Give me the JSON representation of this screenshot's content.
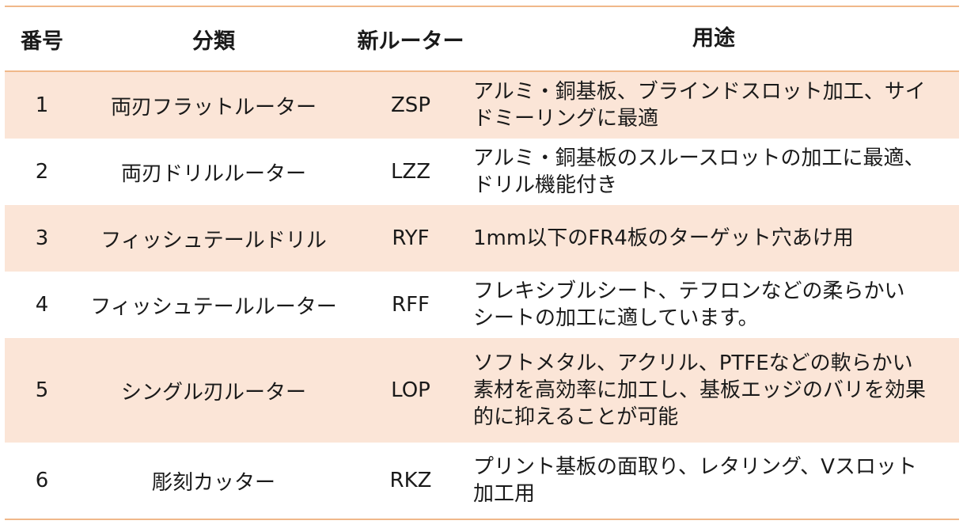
{
  "header": {
    "number": "番号",
    "category": "分類",
    "new_router": "新ルーター",
    "usage": "用途"
  },
  "rows": [
    {
      "number": "1",
      "category": "両刃フラットルーター",
      "code": "ZSP",
      "usage_lines": [
        "アルミ・銅基板、ブラインドスロット加工、サイ",
        "ドミーリングに最適"
      ]
    },
    {
      "number": "2",
      "category": "両刃ドリルルーター",
      "code": "LZZ",
      "usage_lines": [
        "アルミ・銅基板のスルースロットの加工に最適、",
        "ドリル機能付き"
      ]
    },
    {
      "number": "3",
      "category": "フィッシュテールドリル",
      "code": "RYF",
      "usage_lines": [
        "1mm以下のFR4板のターゲット穴あけ用"
      ]
    },
    {
      "number": "4",
      "category": "フィッシュテールルーター",
      "code": "RFF",
      "usage_lines": [
        "フレキシブルシート、テフロンなどの柔らかい",
        "シートの加工に適しています。"
      ]
    },
    {
      "number": "5",
      "category": "シングル刃ルーター",
      "code": "LOP",
      "usage_lines": [
        "ソフトメタル、アクリル、PTFEなどの軟らかい",
        "素材を高効率に加工し、基板エッジのバリを効果",
        "的に抑えることが可能"
      ]
    },
    {
      "number": "6",
      "category": "彫刻カッター",
      "code": "RKZ",
      "usage_lines": [
        "プリント基板の面取り、レタリング、Vスロット",
        "加工用"
      ]
    }
  ],
  "colors": {
    "border": "#f0b88a",
    "stripe": "#fbe5d7",
    "text": "#1a1a1a"
  }
}
